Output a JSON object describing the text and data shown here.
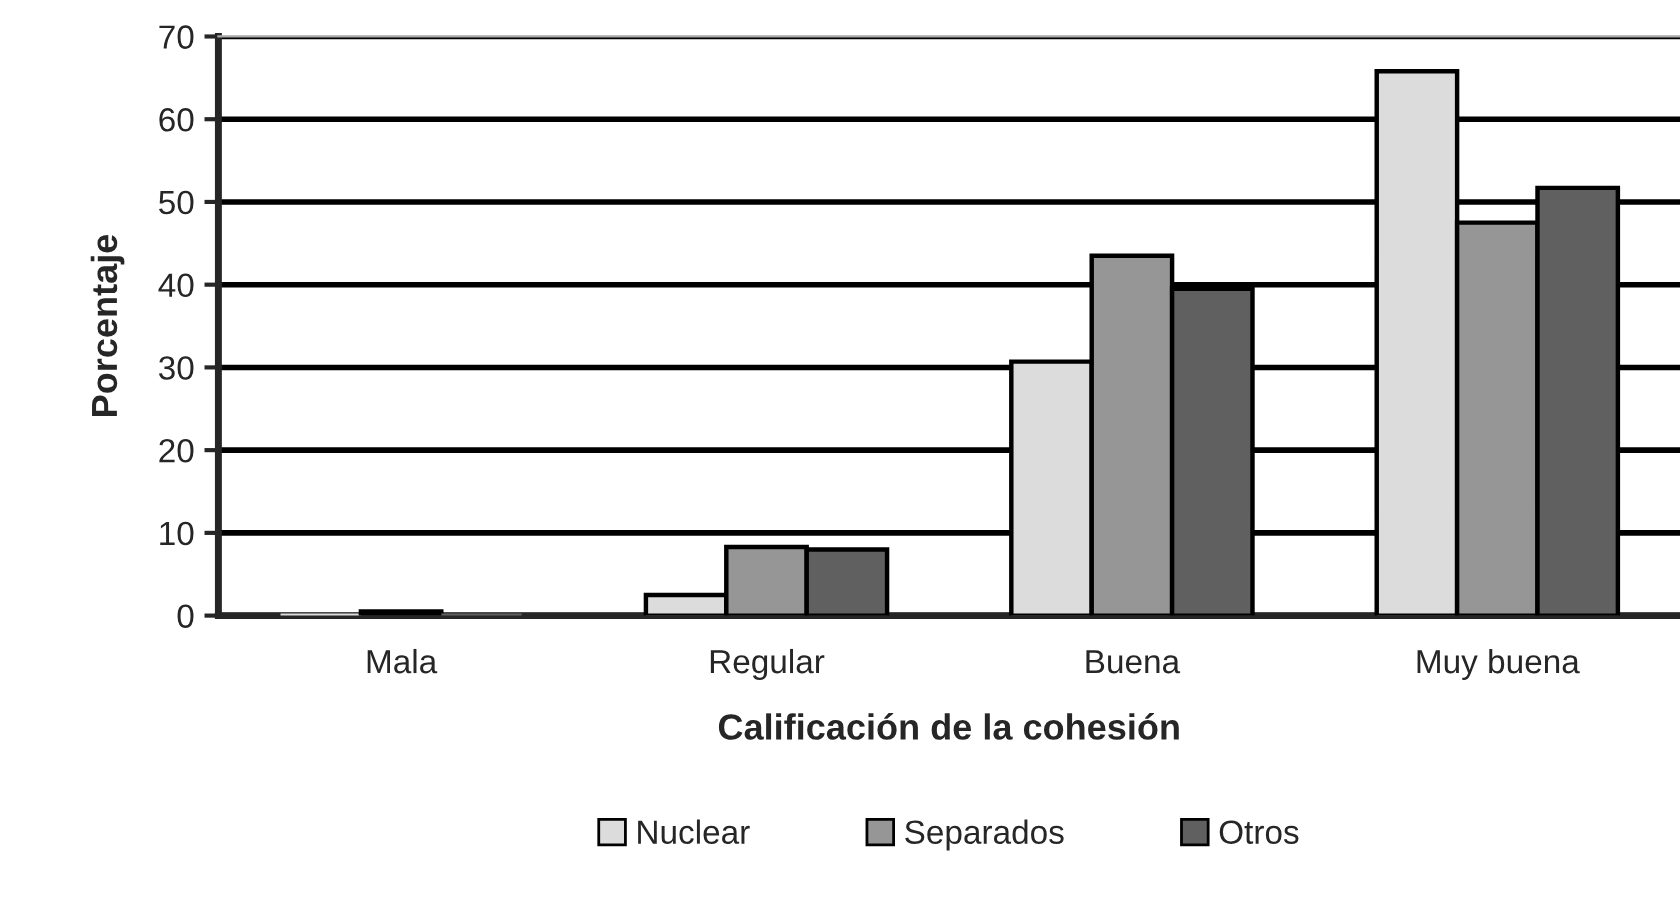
{
  "chart_data": {
    "type": "bar",
    "xlabel": "Calificación de la cohesión",
    "ylabel": "Porcentaje",
    "categories": [
      "Mala",
      "Regular",
      "Buena",
      "Muy buena"
    ],
    "series": [
      {
        "name": "Nuclear",
        "color": "#dcdcdc",
        "values": [
          0,
          2.5,
          30.7,
          65.8
        ]
      },
      {
        "name": "Separados",
        "color": "#969696",
        "values": [
          0.5,
          8.3,
          43.5,
          47.5
        ]
      },
      {
        "name": "Otros",
        "color": "#606060",
        "values": [
          0,
          8,
          39.5,
          51.7
        ]
      }
    ],
    "ylim": [
      0,
      70
    ],
    "yticks": [
      0,
      10,
      20,
      30,
      40,
      50,
      60,
      70
    ],
    "grid": "y",
    "legend": "bottom"
  }
}
